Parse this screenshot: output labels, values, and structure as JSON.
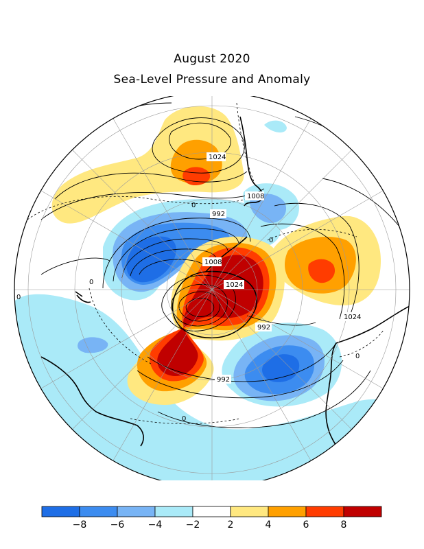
{
  "title": {
    "line1": "August 2020",
    "line2": "Sea-Level Pressure and Anomaly"
  },
  "map": {
    "projection": "polar stereographic (southern hemisphere)",
    "meridian_label": "0",
    "isobar_labels": [
      "1024",
      "1008",
      "992",
      "1008",
      "1024",
      "992",
      "992",
      "1024"
    ],
    "anomaly_zero_labels": [
      "0",
      "0",
      "0",
      "0",
      "0"
    ],
    "colors": {
      "neg8": "#1e6ee6",
      "neg6": "#3c8cf0",
      "neg4": "#78b4f5",
      "neg2": "#aaeaf8",
      "zero": "#ffffff",
      "pos2": "#ffe880",
      "pos4": "#ffa000",
      "pos6": "#ff3c00",
      "pos8": "#c00000"
    }
  },
  "colorbar": {
    "ticks": [
      "−8",
      "−6",
      "−4",
      "−2",
      "2",
      "4",
      "6",
      "8"
    ],
    "colors": [
      "#1e6ee6",
      "#3c8cf0",
      "#78b4f5",
      "#aaeaf8",
      "#ffffff",
      "#ffe880",
      "#ffa000",
      "#ff3c00",
      "#c00000"
    ]
  }
}
